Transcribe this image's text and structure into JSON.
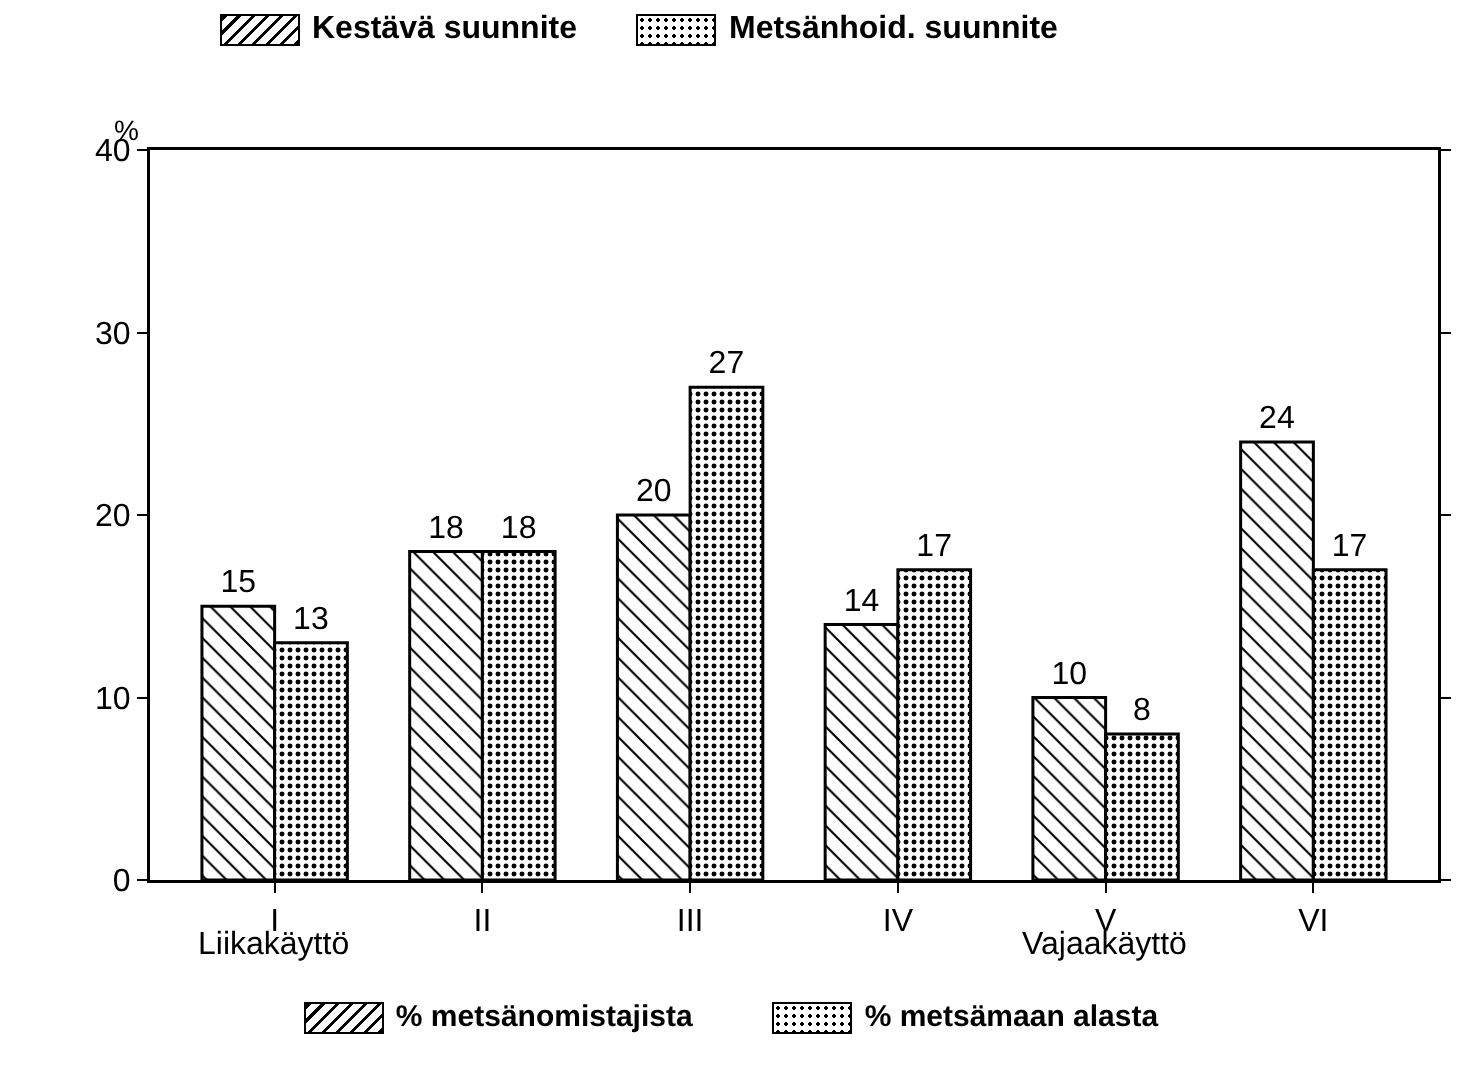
{
  "chart_data": {
    "type": "bar",
    "categories": [
      "I",
      "II",
      "III",
      "IV",
      "V",
      "VI"
    ],
    "series": [
      {
        "name": "Kestävä suunnite",
        "color": "#000000",
        "values": [
          15,
          18,
          20,
          14,
          10,
          24
        ]
      },
      {
        "name": "Metsänhoid. suunnite",
        "color": "#000000",
        "values": [
          13,
          18,
          27,
          17,
          8,
          17
        ]
      }
    ],
    "ylabel": "%",
    "ylim": [
      0,
      40
    ],
    "yticks": [
      0,
      10,
      20,
      30,
      40
    ],
    "grid": false,
    "legend": "top",
    "data_labels": true,
    "annotations": [
      "Liikakäyttö",
      "Vajaakäyttö",
      "% metsänomistajista",
      "% metsämaan alasta"
    ]
  }
}
